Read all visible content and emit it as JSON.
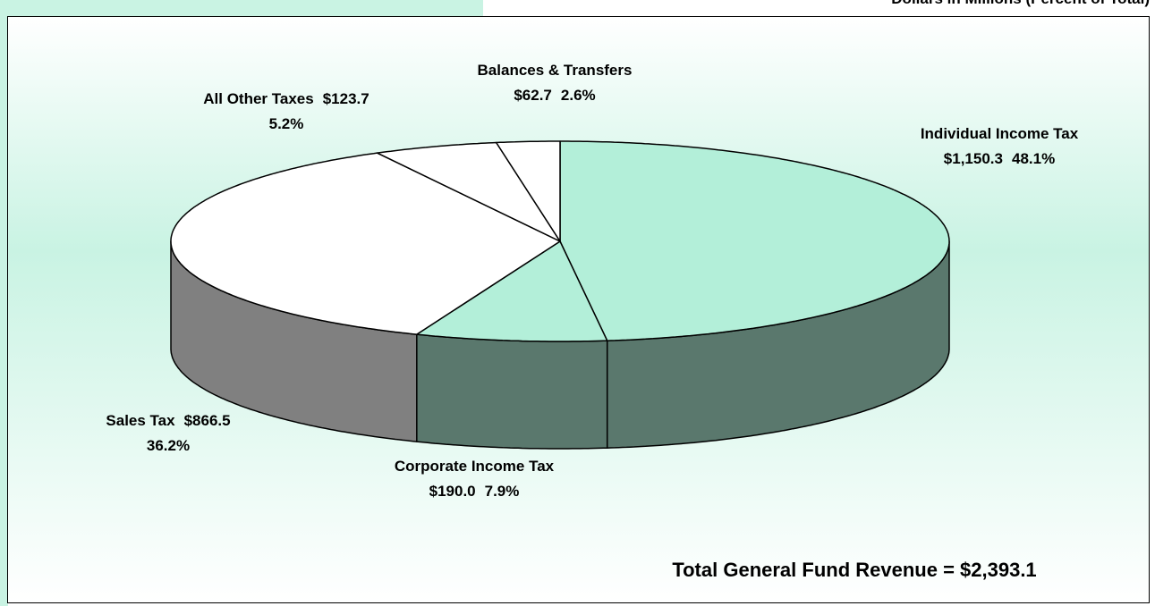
{
  "chart_data": {
    "type": "pie3d",
    "subtitle": "Dollars in Millions (Percent of Total)",
    "categories": [
      "Individual Income Tax",
      "Corporate Income Tax",
      "Sales Tax",
      "All Other Taxes",
      "Balances & Transfers"
    ],
    "values": [
      1150.3,
      190.0,
      866.5,
      123.7,
      62.7
    ],
    "value_labels": [
      "$1,150.3",
      "$190.0",
      "$866.5",
      "$123.7",
      "$62.7"
    ],
    "percent_labels": [
      "48.1%",
      "7.9%",
      "36.2%",
      "5.2%",
      "2.6%"
    ],
    "colors": [
      "#b3efd9",
      "#b3efd9",
      "#ffffff",
      "#ffffff",
      "#ffffff"
    ],
    "annotation": "Total General Fund Revenue = $2,393.1"
  }
}
